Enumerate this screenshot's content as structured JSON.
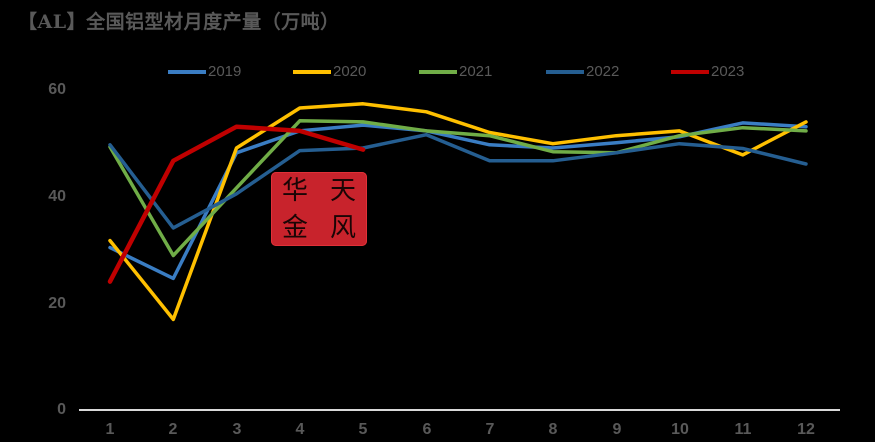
{
  "title": "【AL】全国铝型材月度产量（万吨）",
  "watermark": {
    "chars": [
      "天",
      "华",
      "风",
      "金"
    ],
    "color": "#c8232c"
  },
  "legend": [
    {
      "label": "2019",
      "color": "#3a7dc3"
    },
    {
      "label": "2020",
      "color": "#ffc000"
    },
    {
      "label": "2021",
      "color": "#70ad47"
    },
    {
      "label": "2022",
      "color": "#255e91"
    },
    {
      "label": "2023",
      "color": "#c00000"
    }
  ],
  "y_ticks": [
    "0",
    "20",
    "40",
    "60"
  ],
  "x_ticks": [
    "1",
    "2",
    "3",
    "4",
    "5",
    "6",
    "7",
    "8",
    "9",
    "10",
    "11",
    "12"
  ],
  "chart_data": {
    "type": "line",
    "title": "【AL】全国铝型材月度产量（万吨）",
    "xlabel": "",
    "ylabel": "",
    "x": [
      1,
      2,
      3,
      4,
      5,
      6,
      7,
      8,
      9,
      10,
      11,
      12
    ],
    "ylim": [
      0,
      60
    ],
    "yticks": [
      0,
      20,
      40,
      60
    ],
    "grid": false,
    "legend_position": "top",
    "series": [
      {
        "name": "2019",
        "color": "#3a7dc3",
        "values": [
          30.6,
          24.8,
          48.4,
          52.5,
          53.6,
          52.5,
          49.9,
          49.3,
          50.3,
          51.4,
          54.0,
          53.3
        ]
      },
      {
        "name": "2020",
        "color": "#ffc000",
        "values": [
          31.9,
          17.1,
          49.3,
          56.8,
          57.6,
          56.1,
          52.2,
          50.1,
          51.6,
          52.5,
          48.0,
          54.2
        ]
      },
      {
        "name": "2021",
        "color": "#70ad47",
        "values": [
          49.5,
          29.1,
          41.8,
          54.4,
          54.2,
          52.5,
          51.6,
          48.6,
          48.4,
          51.6,
          53.1,
          52.5
        ]
      },
      {
        "name": "2022",
        "color": "#255e91",
        "values": [
          49.9,
          34.3,
          40.7,
          48.8,
          49.3,
          51.8,
          46.9,
          46.9,
          48.4,
          50.1,
          49.2,
          46.3
        ]
      },
      {
        "name": "2023",
        "color": "#c00000",
        "values": [
          24.2,
          46.9,
          53.3,
          52.5,
          49.0
        ]
      }
    ]
  }
}
